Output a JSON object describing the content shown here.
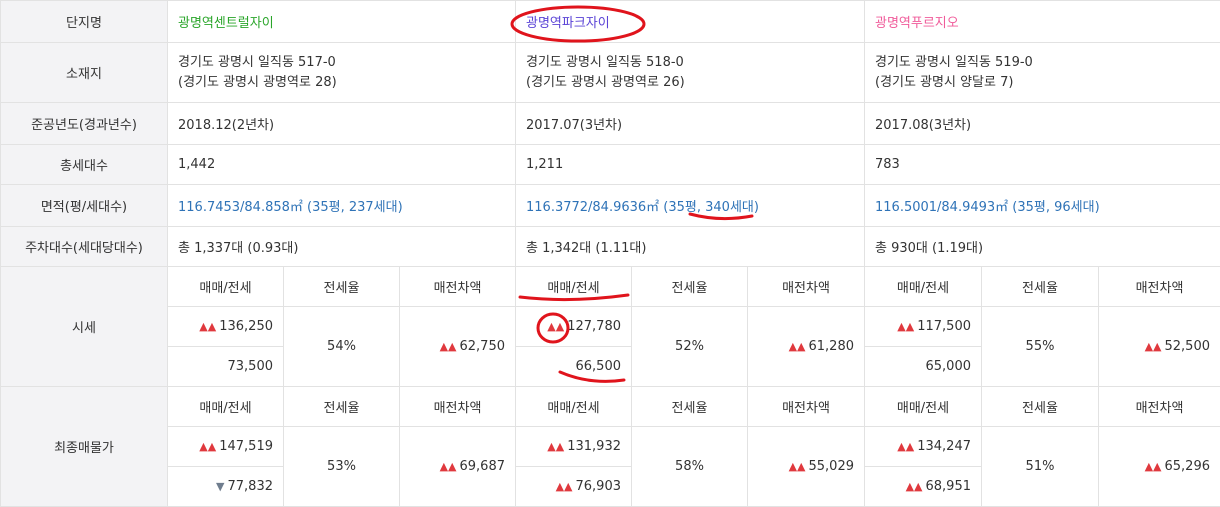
{
  "labels": {
    "complex": "단지명",
    "location": "소재지",
    "completion": "준공년도(경과년수)",
    "households": "총세대수",
    "area": "면적(평/세대수)",
    "parking": "주차대수(세대당대수)",
    "market": "시세",
    "final": "최종매물가",
    "sale_lease": "매매/전세",
    "lease_ratio": "전세율",
    "gap": "매전차액"
  },
  "complexes": [
    {
      "name": "광명역센트럴자이",
      "name_color": "#2aa52a",
      "address": "경기도 광명시 일직동 517-0",
      "road_address": "(경기도 광명시 광명역로 28)",
      "completion": "2018.12(2년차)",
      "households": "1,442",
      "area": "116.7453/84.858㎡ (35평, 237세대)",
      "parking": "총 1,337대 (0.93대)",
      "market": {
        "sale": "136,250",
        "lease": "73,500",
        "ratio": "54%",
        "gap": "62,750"
      },
      "final": {
        "sale": "147,519",
        "lease": "77,832",
        "ratio": "53%",
        "gap": "69,687"
      }
    },
    {
      "name": "광명역파크자이",
      "name_color": "#5a43d6",
      "address": "경기도 광명시 일직동 518-0",
      "road_address": "(경기도 광명시 광명역로 26)",
      "completion": "2017.07(3년차)",
      "households": "1,211",
      "area": "116.3772/84.9636㎡ (35평, 340세대)",
      "parking": "총 1,342대 (1.11대)",
      "market": {
        "sale": "127,780",
        "lease": "66,500",
        "ratio": "52%",
        "gap": "61,280"
      },
      "final": {
        "sale": "131,932",
        "lease": "76,903",
        "ratio": "58%",
        "gap": "55,029"
      }
    },
    {
      "name": "광명역푸르지오",
      "name_color": "#f05b9a",
      "address": "경기도 광명시 일직동 519-0",
      "road_address": "(경기도 광명시 양달로 7)",
      "completion": "2017.08(3년차)",
      "households": "783",
      "area": "116.5001/84.9493㎡ (35평, 96세대)",
      "parking": "총 930대 (1.19대)",
      "market": {
        "sale": "117,500",
        "lease": "65,000",
        "ratio": "55%",
        "gap": "52,500"
      },
      "final": {
        "sale": "134,247",
        "lease": "68,951",
        "ratio": "51%",
        "gap": "65,296"
      }
    }
  ],
  "annotation_color": "#e0141c"
}
